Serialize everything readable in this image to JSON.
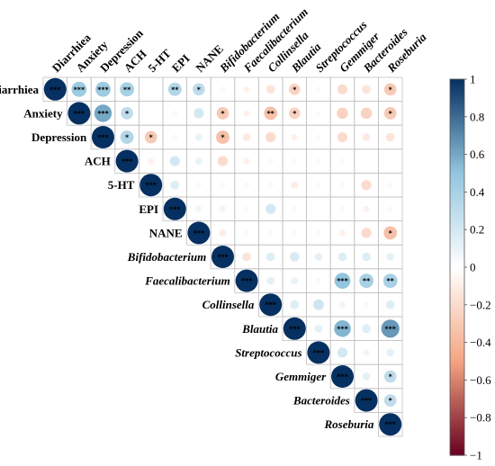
{
  "chart_data": {
    "type": "heatmap",
    "title": "",
    "variables": [
      {
        "name": "Diarrhiea",
        "italic": false
      },
      {
        "name": "Anxiety",
        "italic": false
      },
      {
        "name": "Depression",
        "italic": false
      },
      {
        "name": "ACH",
        "italic": false
      },
      {
        "name": "5-HT",
        "italic": false
      },
      {
        "name": "EPI",
        "italic": false
      },
      {
        "name": "NANE",
        "italic": false
      },
      {
        "name": "Bifidobacterium",
        "italic": true
      },
      {
        "name": "Faecalibacterium",
        "italic": true
      },
      {
        "name": "Collinsella",
        "italic": true
      },
      {
        "name": "Blautia",
        "italic": true
      },
      {
        "name": "Streptococcus",
        "italic": true
      },
      {
        "name": "Gemmiger",
        "italic": true
      },
      {
        "name": "Bacteroides",
        "italic": true
      },
      {
        "name": "Roseburia",
        "italic": true
      }
    ],
    "correlations": [
      [
        1,
        0.45,
        0.45,
        0.4,
        0,
        0.35,
        0.3,
        -0.05,
        -0.08,
        -0.15,
        -0.25,
        -0.05,
        -0.2,
        -0.15,
        -0.3
      ],
      [
        null,
        1,
        0.6,
        0.3,
        0.02,
        0.05,
        0.2,
        -0.3,
        -0.08,
        -0.35,
        -0.25,
        -0.05,
        -0.25,
        -0.25,
        -0.3
      ],
      [
        null,
        null,
        1,
        0.35,
        -0.3,
        0.05,
        0.1,
        -0.35,
        -0.12,
        -0.2,
        -0.08,
        -0.05,
        -0.2,
        -0.12,
        -0.15
      ],
      [
        null,
        null,
        null,
        1,
        -0.08,
        0.2,
        0.1,
        -0.2,
        -0.08,
        -0.05,
        -0.05,
        -0.05,
        -0.05,
        0,
        0
      ],
      [
        null,
        null,
        null,
        null,
        1,
        0.15,
        0.05,
        0.05,
        -0.05,
        -0.05,
        -0.1,
        0.05,
        -0.05,
        -0.2,
        -0.05
      ],
      [
        null,
        null,
        null,
        null,
        null,
        1,
        0.08,
        0.08,
        0.05,
        0.2,
        0.05,
        0,
        0.05,
        -0.08,
        -0.05
      ],
      [
        null,
        null,
        null,
        null,
        null,
        null,
        1,
        -0.1,
        -0.05,
        -0.05,
        -0.05,
        -0.05,
        -0.08,
        -0.2,
        -0.35
      ],
      [
        null,
        null,
        null,
        null,
        null,
        null,
        null,
        1,
        -0.15,
        0.15,
        0.18,
        0.12,
        0.15,
        0.15,
        0.12
      ],
      [
        null,
        null,
        null,
        null,
        null,
        null,
        null,
        null,
        1,
        0.12,
        0.1,
        0.05,
        0.5,
        0.4,
        0.4
      ],
      [
        null,
        null,
        null,
        null,
        null,
        null,
        null,
        null,
        null,
        1,
        0.15,
        0.22,
        0.08,
        0.05,
        0.15
      ],
      [
        null,
        null,
        null,
        null,
        null,
        null,
        null,
        null,
        null,
        null,
        1,
        0.12,
        0.55,
        0.15,
        0.65
      ],
      [
        null,
        null,
        null,
        null,
        null,
        null,
        null,
        null,
        null,
        null,
        null,
        1,
        0.2,
        0.08,
        0.12
      ],
      [
        null,
        null,
        null,
        null,
        null,
        null,
        null,
        null,
        null,
        null,
        null,
        null,
        1,
        0.12,
        0.3
      ],
      [
        null,
        null,
        null,
        null,
        null,
        null,
        null,
        null,
        null,
        null,
        null,
        null,
        null,
        1,
        0.3
      ],
      [
        null,
        null,
        null,
        null,
        null,
        null,
        null,
        null,
        null,
        null,
        null,
        null,
        null,
        null,
        1
      ]
    ],
    "significance": [
      [
        "***",
        "***",
        "***",
        "**",
        "",
        "**",
        "*",
        "",
        "",
        "",
        "*",
        "",
        "",
        "",
        "*"
      ],
      [
        null,
        "***",
        "***",
        "*",
        "",
        "",
        "",
        "*",
        "",
        "**",
        "*",
        "",
        "",
        "",
        "*"
      ],
      [
        null,
        null,
        "***",
        "*",
        "*",
        "",
        "",
        "*",
        "",
        "",
        "",
        "",
        "",
        "",
        ""
      ],
      [
        null,
        null,
        null,
        "***",
        "",
        "",
        "",
        "",
        "",
        "",
        "",
        "",
        "",
        "",
        ""
      ],
      [
        null,
        null,
        null,
        null,
        "***",
        "",
        "",
        "",
        "",
        "",
        "",
        "",
        "",
        "",
        ""
      ],
      [
        null,
        null,
        null,
        null,
        null,
        "***",
        "",
        "",
        "",
        "",
        "",
        "",
        "",
        "",
        ""
      ],
      [
        null,
        null,
        null,
        null,
        null,
        null,
        "***",
        "",
        "",
        "",
        "",
        "",
        "",
        "",
        "*"
      ],
      [
        null,
        null,
        null,
        null,
        null,
        null,
        null,
        "***",
        "",
        "",
        "",
        "",
        "",
        "",
        ""
      ],
      [
        null,
        null,
        null,
        null,
        null,
        null,
        null,
        null,
        "***",
        "",
        "",
        "",
        "***",
        "**",
        "**"
      ],
      [
        null,
        null,
        null,
        null,
        null,
        null,
        null,
        null,
        null,
        "***",
        "",
        "",
        "",
        "",
        ""
      ],
      [
        null,
        null,
        null,
        null,
        null,
        null,
        null,
        null,
        null,
        null,
        "***",
        "",
        "***",
        "",
        "***"
      ],
      [
        null,
        null,
        null,
        null,
        null,
        null,
        null,
        null,
        null,
        null,
        null,
        "***",
        "",
        "",
        ""
      ],
      [
        null,
        null,
        null,
        null,
        null,
        null,
        null,
        null,
        null,
        null,
        null,
        null,
        "***",
        "",
        "*"
      ],
      [
        null,
        null,
        null,
        null,
        null,
        null,
        null,
        null,
        null,
        null,
        null,
        null,
        null,
        "***",
        "*"
      ],
      [
        null,
        null,
        null,
        null,
        null,
        null,
        null,
        null,
        null,
        null,
        null,
        null,
        null,
        null,
        "***"
      ]
    ],
    "colorbar": {
      "range": [
        -1,
        1
      ],
      "ticks": [
        "1",
        "0.8",
        "0.6",
        "0.4",
        "0.2",
        "0",
        "−0.2",
        "−0.4",
        "−0.6",
        "−0.8",
        "−1"
      ],
      "tick_values": [
        1,
        0.8,
        0.6,
        0.4,
        0.2,
        0,
        -0.2,
        -0.4,
        -0.6,
        -0.8,
        -1
      ]
    },
    "colors": {
      "neg_end": "#67001f",
      "neg_mid": "#f4a582",
      "zero": "#ffffff",
      "pos_mid": "#92c5de",
      "pos_end": "#053061",
      "grid": "#c0c0c0"
    },
    "layout": "upper-triangular",
    "legend": "right"
  }
}
